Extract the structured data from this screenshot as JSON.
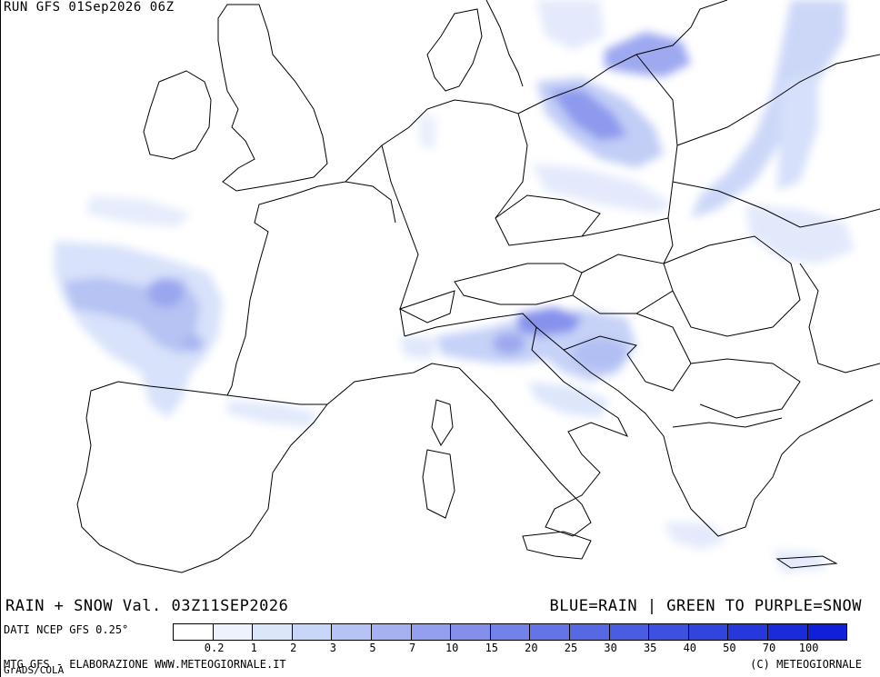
{
  "header": {
    "run_label": "RUN GFS 01Sep2026 06Z"
  },
  "footer": {
    "variable_title": "RAIN + SNOW Val. 03Z11SEP2026",
    "legend_description": "BLUE=RAIN | GREEN TO PURPLE=SNOW",
    "data_source": "DATI NCEP GFS 0.25°",
    "processing": "MTG GFS - ELABORAZIONE WWW.METEOGIORNALE.IT",
    "copyright": "(C) METEOGIORNALE",
    "software": "GrADS/COLA"
  },
  "legend": {
    "colors": [
      "#ffffff",
      "#eef2fd",
      "#dce6fb",
      "#c8d6f8",
      "#b4c4f5",
      "#a4b2f2",
      "#92a0ef",
      "#8290ec",
      "#7282e8",
      "#6474e6",
      "#5668e4",
      "#4a5ce2",
      "#3e50e0",
      "#3244de",
      "#2638dc",
      "#1a2cda",
      "#1020d8"
    ],
    "ticks": [
      "0.2",
      "1",
      "2",
      "3",
      "5",
      "7",
      "10",
      "15",
      "20",
      "25",
      "30",
      "35",
      "40",
      "50",
      "70",
      "100"
    ]
  },
  "map_features": {
    "precipitation_areas": [
      {
        "name": "Atlantic W of France",
        "intensity": "moderate"
      },
      {
        "name": "Poland / Baltic",
        "intensity": "moderate"
      },
      {
        "name": "Northern Italy / Slovenia",
        "intensity": "moderate"
      },
      {
        "name": "Croatia / Bosnia",
        "intensity": "light"
      },
      {
        "name": "Belarus / Ukraine band",
        "intensity": "light"
      }
    ]
  }
}
